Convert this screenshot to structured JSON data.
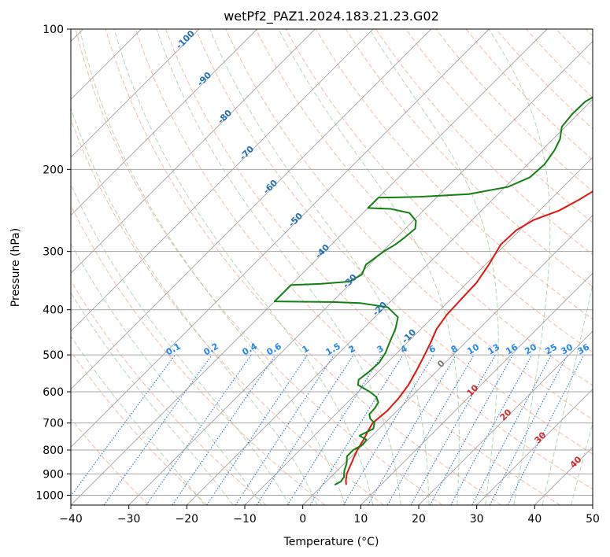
{
  "chart_data": {
    "type": "line",
    "title": "wetPf2_PAZ1.2024.183.21.23.G02",
    "xlabel": "Temperature (°C)",
    "ylabel": "Pressure (hPa)",
    "xlim": [
      -40,
      50
    ],
    "ylim_hpa": [
      1050,
      100
    ],
    "log_pressure_axis": true,
    "grid": true,
    "x_ticks": [
      "−40",
      "−30",
      "−20",
      "−10",
      "0",
      "10",
      "20",
      "30",
      "40",
      "50"
    ],
    "x_tick_values": [
      -40,
      -30,
      -20,
      -10,
      0,
      10,
      20,
      30,
      40,
      50
    ],
    "y_ticks": [
      "100",
      "200",
      "300",
      "400",
      "500",
      "600",
      "700",
      "800",
      "900",
      "1000"
    ],
    "y_tick_values": [
      100,
      200,
      300,
      400,
      500,
      600,
      700,
      800,
      900,
      1000
    ],
    "series": [
      {
        "color": "#e3140f",
        "points": [
          [
            4.0,
            950
          ],
          [
            3.2,
            930
          ],
          [
            2.2,
            900
          ],
          [
            1.3,
            860
          ],
          [
            0.6,
            830
          ],
          [
            -0.1,
            800
          ],
          [
            -0.8,
            760
          ],
          [
            -1.6,
            725
          ],
          [
            -2.1,
            700
          ],
          [
            -1.7,
            660
          ],
          [
            -1.9,
            620
          ],
          [
            -2.5,
            580
          ],
          [
            -3.6,
            540
          ],
          [
            -4.9,
            500
          ],
          [
            -6.0,
            470
          ],
          [
            -7.3,
            440
          ],
          [
            -8.0,
            410
          ],
          [
            -8.2,
            380
          ],
          [
            -8.4,
            350
          ],
          [
            -9.4,
            320
          ],
          [
            -10.8,
            290
          ],
          [
            -10.6,
            270
          ],
          [
            -9.4,
            257
          ],
          [
            -6.6,
            245
          ],
          [
            -5.0,
            232
          ],
          [
            -3.6,
            218
          ],
          [
            -2.0,
            200
          ],
          [
            0.6,
            180
          ],
          [
            3.0,
            162
          ],
          [
            5.5,
            145
          ],
          [
            8.3,
            132
          ],
          [
            11.3,
            120
          ],
          [
            13.4,
            111
          ],
          [
            15.6,
            100
          ]
        ]
      },
      {
        "color": "#118011",
        "points": [
          [
            2.0,
            950
          ],
          [
            2.5,
            935
          ],
          [
            2.3,
            915
          ],
          [
            1.2,
            885
          ],
          [
            0.4,
            855
          ],
          [
            -0.8,
            825
          ],
          [
            -0.8,
            800
          ],
          [
            -0.1,
            780
          ],
          [
            -0.3,
            760
          ],
          [
            -2.2,
            745
          ],
          [
            -1.0,
            720
          ],
          [
            -1.8,
            700
          ],
          [
            -3.3,
            685
          ],
          [
            -4.2,
            670
          ],
          [
            -4.3,
            650
          ],
          [
            -4.7,
            632
          ],
          [
            -6.0,
            615
          ],
          [
            -8.0,
            600
          ],
          [
            -11.2,
            580
          ],
          [
            -12.0,
            565
          ],
          [
            -11.6,
            545
          ],
          [
            -11.4,
            520
          ],
          [
            -12.0,
            495
          ],
          [
            -13.1,
            470
          ],
          [
            -14.4,
            440
          ],
          [
            -16.0,
            415
          ],
          [
            -19.5,
            395
          ],
          [
            -25.0,
            387
          ],
          [
            -30.0,
            385
          ],
          [
            -40.0,
            384
          ],
          [
            -40.0,
            354
          ],
          [
            -35.0,
            352
          ],
          [
            -30.5,
            348
          ],
          [
            -29.6,
            336
          ],
          [
            -30.6,
            320
          ],
          [
            -29.8,
            300
          ],
          [
            -29.0,
            290
          ],
          [
            -28.6,
            280
          ],
          [
            -28.3,
            268
          ],
          [
            -29.5,
            258
          ],
          [
            -32.0,
            248
          ],
          [
            -36.0,
            243
          ],
          [
            -40.0,
            242
          ],
          [
            -40.0,
            230
          ],
          [
            -33.0,
            229
          ],
          [
            -25.0,
            226
          ],
          [
            -19.5,
            218
          ],
          [
            -17.4,
            208
          ],
          [
            -17.1,
            195
          ],
          [
            -17.8,
            182
          ],
          [
            -18.8,
            172
          ],
          [
            -20.6,
            162
          ],
          [
            -21.0,
            152
          ],
          [
            -20.9,
            143
          ],
          [
            -19.6,
            136
          ],
          [
            -17.6,
            130
          ],
          [
            -13.6,
            122
          ],
          [
            -11.3,
            114
          ],
          [
            -10.1,
            106
          ],
          [
            -8.9,
            100
          ]
        ]
      }
    ],
    "dry_adiabat_labels": [
      "-100",
      "-90",
      "-80",
      "-70",
      "-60",
      "-50",
      "-40",
      "-30",
      "-20",
      "-10"
    ],
    "mixing_ratio_labels": [
      "0.1",
      "0.2",
      "0.4",
      "0.6",
      "1",
      "1.5",
      "2",
      "3",
      "4",
      "6",
      "8",
      "10",
      "13",
      "16",
      "20",
      "25",
      "30",
      "36"
    ],
    "moist_adiabat_labels": [
      "0",
      "10",
      "20",
      "30",
      "40"
    ],
    "colors": {
      "temperature": "#e3140f",
      "dewpoint": "#118011",
      "dry_adiabat": "#f4a582",
      "moist_adiabat": "#7fbf7f",
      "mixing_ratio": "#1f78d4",
      "isotherm": "#999999",
      "dry_label": "#1f6fb4",
      "mixing_label": "#2288ee",
      "moist_label": "#d62728",
      "zero_label": "#777777"
    }
  }
}
